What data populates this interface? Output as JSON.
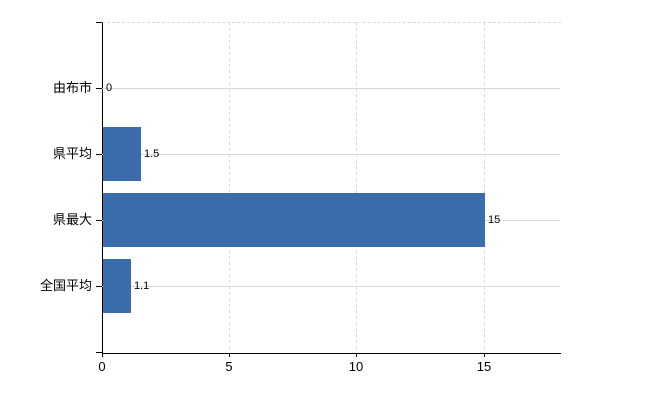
{
  "chart_data": {
    "type": "bar",
    "orientation": "horizontal",
    "categories": [
      "由布市",
      "県平均",
      "県最大",
      "全国平均"
    ],
    "values": [
      0,
      1.5,
      15,
      1.1
    ],
    "value_labels": [
      "0",
      "1.5",
      "15",
      "1.1"
    ],
    "x_ticks": [
      0,
      5,
      10,
      15
    ],
    "x_tick_labels": [
      "0",
      "5",
      "10",
      "15"
    ],
    "xlim": [
      0,
      18
    ],
    "title": "",
    "grid": true,
    "legend": false,
    "colors": {
      "bar": "#3b6dad",
      "grid": "#d9d9d9",
      "axis": "#000000",
      "text": "#000000",
      "background": "#ffffff"
    }
  }
}
